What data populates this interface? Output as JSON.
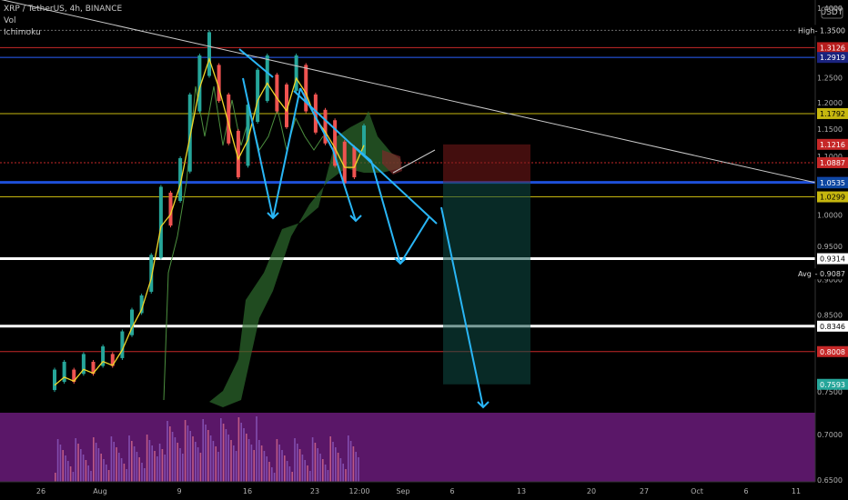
{
  "chart_data": {
    "type": "line",
    "title": "XRP / TetherUS, 4h, BINANCE",
    "indicators": [
      "Vol",
      "Ichimoku"
    ],
    "currency_label": "USDT",
    "ylim": [
      0.65,
      1.4
    ],
    "y_scale": "log",
    "x_tick_labels": [
      "26",
      "Aug",
      "9",
      "16",
      "23",
      "12:00",
      "Sep",
      "6",
      "13",
      "20",
      "27",
      "Oct",
      "6",
      "11"
    ],
    "y_tick_labels": [
      "1.4000",
      "1.2500",
      "1.2000",
      "1.1500",
      "1.1000",
      "1.0000",
      "0.9500",
      "0.9000",
      "0.8500",
      "0.7500",
      "0.7000",
      "0.6500"
    ],
    "price_labels": [
      {
        "label": "High",
        "value": "1.3500",
        "color": "#000000"
      },
      {
        "label": "",
        "value": "1.3126",
        "color": "#b71c1c"
      },
      {
        "label": "",
        "value": "1.2919",
        "color": "#1a237e"
      },
      {
        "label": "",
        "value": "1.1792",
        "color": "#c6b70f"
      },
      {
        "label": "",
        "value": "1.1216",
        "color": "#c62828"
      },
      {
        "label": "",
        "value": "1.0887",
        "color": "#c62828"
      },
      {
        "label": "",
        "value": "1.0543",
        "color": "#1e4fd8"
      },
      {
        "label": "",
        "value": "1.0535",
        "color": "#0d47a1"
      },
      {
        "label": "",
        "value": "1.0299",
        "color": "#c6b70f"
      },
      {
        "label": "",
        "value": "0.9314",
        "color": "#ffffff"
      },
      {
        "label": "Avg",
        "value": "0.9087",
        "color": "#000000"
      },
      {
        "label": "",
        "value": "0.8346",
        "color": "#ffffff"
      },
      {
        "label": "",
        "value": "0.8008",
        "color": "#c62828"
      },
      {
        "label": "",
        "value": "0.7593",
        "color": "#26a69a"
      }
    ],
    "horizontal_lines": [
      {
        "value": 1.35,
        "color": "#6b6b6b",
        "style": "dotted"
      },
      {
        "value": 1.3126,
        "color": "#c62828",
        "style": "solid"
      },
      {
        "value": 1.2919,
        "color": "#2962ff",
        "style": "solid"
      },
      {
        "value": 1.1792,
        "color": "#c6b70f",
        "style": "solid"
      },
      {
        "value": 1.0887,
        "color": "#c62828",
        "style": "dotted"
      },
      {
        "value": 1.0543,
        "color": "#1e4fd8",
        "style": "thick"
      },
      {
        "value": 1.0299,
        "color": "#c6b70f",
        "style": "solid"
      },
      {
        "value": 0.9314,
        "color": "#ffffff",
        "style": "thick"
      },
      {
        "value": 0.8346,
        "color": "#ffffff",
        "style": "thick"
      },
      {
        "value": 0.8008,
        "color": "#c62828",
        "style": "solid"
      }
    ],
    "price_path": [
      [
        0.78,
        0.75
      ],
      [
        0.79,
        0.76
      ],
      [
        0.78,
        0.76
      ],
      [
        0.8,
        0.77
      ],
      [
        0.79,
        0.77
      ],
      [
        0.81,
        0.78
      ],
      [
        0.8,
        0.78
      ],
      [
        0.83,
        0.79
      ],
      [
        0.86,
        0.82
      ],
      [
        0.88,
        0.85
      ],
      [
        0.94,
        0.88
      ],
      [
        1.05,
        0.93
      ],
      [
        1.04,
        0.98
      ],
      [
        1.1,
        1.02
      ],
      [
        1.22,
        1.07
      ],
      [
        1.3,
        1.18
      ],
      [
        1.35,
        1.25
      ],
      [
        1.28,
        1.2
      ],
      [
        1.22,
        1.12
      ],
      [
        1.15,
        1.06
      ],
      [
        1.2,
        1.08
      ],
      [
        1.27,
        1.16
      ],
      [
        1.3,
        1.2
      ],
      [
        1.26,
        1.18
      ],
      [
        1.24,
        1.15
      ],
      [
        1.3,
        1.22
      ],
      [
        1.28,
        1.18
      ],
      [
        1.22,
        1.14
      ],
      [
        1.19,
        1.12
      ],
      [
        1.17,
        1.08
      ],
      [
        1.13,
        1.05
      ],
      [
        1.12,
        1.06
      ],
      [
        1.16,
        1.1
      ]
    ],
    "series": [
      {
        "color": "#f1d72a"
      },
      {
        "color": "#4c8f3f"
      }
    ],
    "trendline": {
      "from_x_index": 0,
      "from_value": 1.42,
      "to_x_index": 45,
      "to_value": 1.054,
      "color": "#c8c8c8"
    },
    "projection_arrows_color": "#29b6f6",
    "position_box": {
      "entry": 1.0543,
      "stop": 1.1216,
      "target": 0.7593
    }
  }
}
